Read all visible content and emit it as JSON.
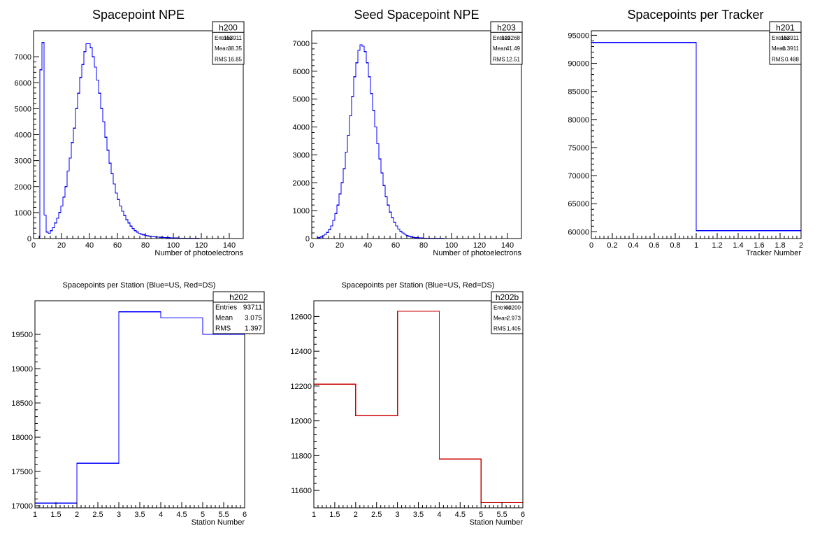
{
  "chart_data": [
    {
      "id": "h200",
      "type": "histogram",
      "title": "Spacepoint NPE",
      "xlabel": "Number of photoelectrons",
      "ylabel": "",
      "xlim": [
        0,
        150
      ],
      "ylim": [
        0,
        8000
      ],
      "xticks": [
        0,
        20,
        40,
        60,
        80,
        100,
        120,
        140
      ],
      "yticks": [
        0,
        1000,
        2000,
        3000,
        4000,
        5000,
        6000,
        7000
      ],
      "color": "#0000ff",
      "stats": {
        "name": "h200",
        "rows": [
          [
            "Entries",
            "153911"
          ],
          [
            "Mean",
            "38.35"
          ],
          [
            "RMS",
            "16.85"
          ]
        ]
      },
      "bins": {
        "x": [
          0,
          1.5,
          3,
          4.5,
          6,
          7.5,
          9,
          10.5,
          12,
          13.5,
          15,
          16.5,
          18,
          19.5,
          21,
          22.5,
          24,
          25.5,
          27,
          28.5,
          30,
          31.5,
          33,
          34.5,
          36,
          37.5,
          39,
          40.5,
          42,
          43.5,
          45,
          46.5,
          48,
          49.5,
          51,
          52.5,
          54,
          55.5,
          57,
          58.5,
          60,
          61.5,
          63,
          64.5,
          66,
          67.5,
          69,
          70.5,
          72,
          73.5,
          75,
          76.5,
          78,
          79.5,
          81,
          82.5,
          84,
          85.5,
          87,
          88.5,
          90,
          91.5,
          93,
          94.5,
          96,
          97.5,
          99,
          100.5,
          102,
          103.5,
          105,
          106.5,
          108,
          109.5,
          111,
          112.5,
          114,
          115.5,
          117,
          118.5,
          120,
          121.5,
          123,
          124.5,
          126,
          127.5,
          129,
          130.5,
          132,
          133.5,
          135,
          136.5,
          138,
          139.5,
          141,
          142.5,
          144,
          145.5,
          147,
          148.5
        ],
        "y": [
          0,
          0,
          0,
          6500,
          7550,
          900,
          250,
          200,
          300,
          420,
          600,
          780,
          1000,
          1250,
          1600,
          2000,
          2600,
          3100,
          3700,
          4250,
          5000,
          5600,
          6200,
          6700,
          7200,
          7500,
          7500,
          7350,
          7000,
          6600,
          6100,
          5600,
          5000,
          4500,
          3900,
          3400,
          2900,
          2500,
          2100,
          1750,
          1500,
          1250,
          1050,
          880,
          720,
          600,
          480,
          380,
          300,
          250,
          200,
          170,
          140,
          120,
          100,
          90,
          80,
          70,
          60,
          55,
          50,
          45,
          40,
          35,
          30,
          25,
          22,
          20,
          18,
          15,
          12,
          10,
          9,
          8,
          7,
          6,
          5,
          4,
          3,
          2,
          2,
          1,
          1,
          0,
          0,
          0,
          0,
          0,
          0,
          0,
          0,
          0,
          0,
          0,
          0,
          0,
          0,
          0,
          0,
          0
        ]
      }
    },
    {
      "id": "h203",
      "type": "histogram",
      "title": "Seed Spacepoint NPE",
      "xlabel": "Number of photoelectrons",
      "ylabel": "",
      "xlim": [
        0,
        150
      ],
      "ylim": [
        0,
        7450
      ],
      "xticks": [
        0,
        20,
        40,
        60,
        80,
        100,
        120,
        140
      ],
      "yticks": [
        0,
        1000,
        2000,
        3000,
        4000,
        5000,
        6000,
        7000
      ],
      "color": "#0000ff",
      "stats": {
        "name": "h203",
        "rows": [
          [
            "Entries",
            "123268"
          ],
          [
            "Mean",
            "41.49"
          ],
          [
            "RMS",
            "12.51"
          ]
        ]
      },
      "bins": {
        "x": [
          0,
          1.5,
          3,
          4.5,
          6,
          7.5,
          9,
          10.5,
          12,
          13.5,
          15,
          16.5,
          18,
          19.5,
          21,
          22.5,
          24,
          25.5,
          27,
          28.5,
          30,
          31.5,
          33,
          34.5,
          36,
          37.5,
          39,
          40.5,
          42,
          43.5,
          45,
          46.5,
          48,
          49.5,
          51,
          52.5,
          54,
          55.5,
          57,
          58.5,
          60,
          61.5,
          63,
          64.5,
          66,
          67.5,
          69,
          70.5,
          72,
          73.5,
          75,
          76.5,
          78,
          79.5,
          81,
          82.5,
          84,
          85.5,
          87,
          88.5,
          90,
          91.5,
          93,
          94.5,
          96,
          97.5,
          99,
          100.5,
          102,
          103.5,
          105,
          106.5,
          108,
          109.5,
          111,
          112.5,
          114,
          115.5,
          117,
          118.5,
          120,
          121.5,
          123,
          124.5,
          126,
          127.5,
          129,
          130.5,
          132,
          133.5,
          135,
          136.5,
          138,
          139.5,
          141,
          142.5,
          144,
          145.5,
          147,
          148.5
        ],
        "y": [
          0,
          0,
          0,
          30,
          60,
          100,
          150,
          220,
          320,
          450,
          650,
          900,
          1200,
          1600,
          2000,
          2500,
          3100,
          3700,
          4400,
          5100,
          5800,
          6300,
          6750,
          6950,
          6900,
          6700,
          6300,
          5800,
          5200,
          4600,
          4000,
          3400,
          2850,
          2350,
          1900,
          1500,
          1200,
          950,
          750,
          580,
          450,
          340,
          260,
          200,
          150,
          110,
          80,
          60,
          45,
          35,
          28,
          22,
          18,
          15,
          12,
          10,
          8,
          7,
          6,
          5,
          4,
          3,
          3,
          2,
          2,
          1,
          1,
          0,
          0,
          0,
          0,
          0,
          0,
          0,
          0,
          0,
          0,
          0,
          0,
          0,
          0,
          0,
          0,
          0,
          0,
          0,
          0,
          0,
          0,
          0,
          0,
          0,
          0,
          0,
          0,
          0,
          0,
          0,
          0,
          0
        ]
      }
    },
    {
      "id": "h201",
      "type": "histogram",
      "title": "Spacepoints per Tracker",
      "xlabel": "Tracker Number",
      "ylabel": "",
      "xlim": [
        0,
        2
      ],
      "ylim": [
        58800,
        95800
      ],
      "xticks": [
        0,
        0.2,
        0.4,
        0.6,
        0.8,
        1,
        1.2,
        1.4,
        1.6,
        1.8,
        2
      ],
      "yticks": [
        60000,
        65000,
        70000,
        75000,
        80000,
        85000,
        90000,
        95000
      ],
      "color": "#0000ff",
      "stats": {
        "name": "h201",
        "rows": [
          [
            "Entries",
            "153911"
          ],
          [
            "Mean",
            "0.3911"
          ],
          [
            "RMS",
            "0.488"
          ]
        ]
      },
      "bins": {
        "x": [
          0,
          1
        ],
        "y": [
          93711,
          60200
        ]
      }
    },
    {
      "id": "h202",
      "type": "histogram",
      "title": "Spacepoints per Station (Blue=US, Red=DS)",
      "xlabel": "Station Number",
      "ylabel": "",
      "xlim": [
        1,
        6
      ],
      "ylim": [
        16970,
        19990
      ],
      "xticks": [
        1,
        1.5,
        2,
        2.5,
        3,
        3.5,
        4,
        4.5,
        5,
        5.5,
        6
      ],
      "yticks": [
        17000,
        17500,
        18000,
        18500,
        19000,
        19500
      ],
      "color": "#0000ff",
      "stats": {
        "name": "h202",
        "rows": [
          [
            "Entries",
            "93711"
          ],
          [
            "Mean",
            "3.075"
          ],
          [
            "RMS",
            "1.397"
          ]
        ]
      },
      "bins": {
        "x": [
          1,
          2,
          3,
          4,
          5
        ],
        "y": [
          17040,
          17620,
          19830,
          19740,
          19500
        ]
      }
    },
    {
      "id": "h202b",
      "type": "histogram",
      "title": "Spacepoints per Station (Blue=US, Red=DS)",
      "xlabel": "Station Number",
      "ylabel": "",
      "xlim": [
        1,
        6
      ],
      "ylim": [
        11500,
        12690
      ],
      "xticks": [
        1,
        1.5,
        2,
        2.5,
        3,
        3.5,
        4,
        4.5,
        5,
        5.5,
        6
      ],
      "yticks": [
        11600,
        11800,
        12000,
        12200,
        12400,
        12600
      ],
      "color": "#cc0000",
      "stats": {
        "name": "h202b",
        "rows": [
          [
            "Entries",
            "60200"
          ],
          [
            "Mean",
            "2.973"
          ],
          [
            "RMS",
            "1.405"
          ]
        ]
      },
      "bins": {
        "x": [
          1,
          2,
          3,
          4,
          5
        ],
        "y": [
          12210,
          12030,
          12630,
          11780,
          11530
        ]
      }
    }
  ]
}
